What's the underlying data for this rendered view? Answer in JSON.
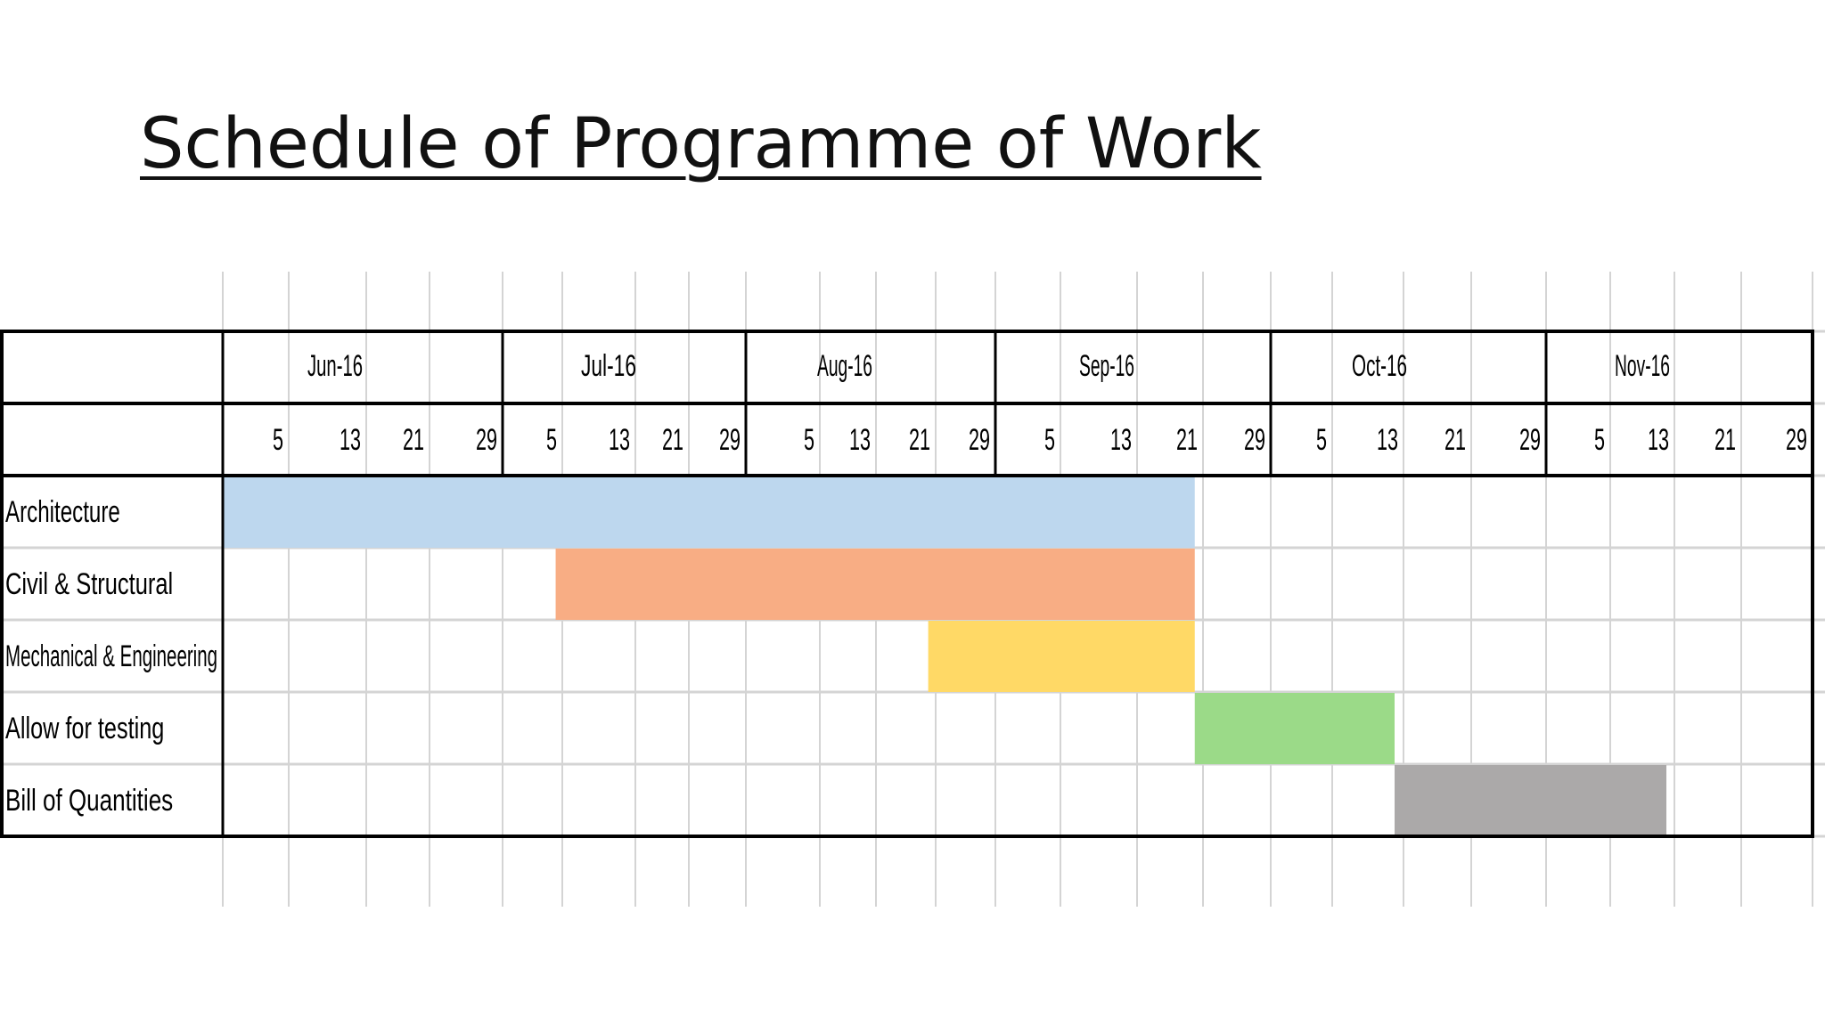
{
  "slide": {
    "title": "Schedule of Programme of Work"
  },
  "chart_data": {
    "type": "gantt",
    "months": [
      "Jun-16",
      "Jul-16",
      "Aug-16",
      "Sep-16",
      "Oct-16",
      "Nov-16"
    ],
    "day_ticks": [
      "5",
      "13",
      "21",
      "29"
    ],
    "tasks": [
      {
        "name": "Architecture",
        "start": "2016-06-01",
        "end": "2016-09-25",
        "color": "#BDD7EE"
      },
      {
        "name": "Civil & Structural",
        "start": "2016-07-09",
        "end": "2016-09-25",
        "color": "#F8AD84"
      },
      {
        "name": "Mechanical & Engineering",
        "start": "2016-08-25",
        "end": "2016-09-25",
        "color": "#FFD966"
      },
      {
        "name": "Allow for testing",
        "start": "2016-09-25",
        "end": "2016-10-17",
        "color": "#9BDA88"
      },
      {
        "name": "Bill of Quantities",
        "start": "2016-10-17",
        "end": "2016-11-17",
        "color": "#ABA9A9"
      }
    ]
  }
}
